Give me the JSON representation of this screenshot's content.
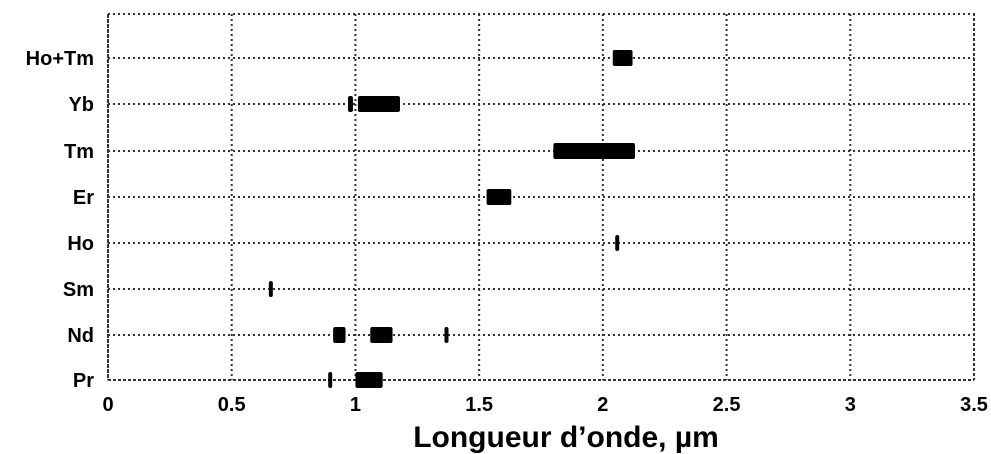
{
  "chart_data": {
    "type": "bar",
    "orientation": "horizontal-range",
    "xlabel": "Longueur d’onde, µm",
    "ylabel": "",
    "title": "",
    "xlim": [
      0,
      3.5
    ],
    "xticks": [
      "0",
      "0.5",
      "1",
      "1.5",
      "2",
      "2.5",
      "3",
      "3.5"
    ],
    "grid": true,
    "categories": [
      "Ho+Tm",
      "Yb",
      "Tm",
      "Er",
      "Ho",
      "Sm",
      "Nd",
      "Pr"
    ],
    "ranges": [
      {
        "category": "Ho+Tm",
        "intervals": [
          [
            2.04,
            2.12
          ]
        ]
      },
      {
        "category": "Yb",
        "intervals": [
          [
            0.97,
            0.99
          ],
          [
            1.01,
            1.18
          ]
        ]
      },
      {
        "category": "Tm",
        "intervals": [
          [
            1.8,
            2.13
          ]
        ]
      },
      {
        "category": "Er",
        "intervals": [
          [
            1.53,
            1.63
          ]
        ]
      },
      {
        "category": "Ho",
        "intervals": [
          [
            2.05,
            2.06
          ]
        ]
      },
      {
        "category": "Sm",
        "intervals": [
          [
            0.65,
            0.66
          ]
        ]
      },
      {
        "category": "Nd",
        "intervals": [
          [
            0.91,
            0.96
          ],
          [
            1.06,
            1.15
          ],
          [
            1.36,
            1.37
          ]
        ]
      },
      {
        "category": "Pr",
        "intervals": [
          [
            0.89,
            0.9
          ],
          [
            1.0,
            1.11
          ]
        ]
      }
    ],
    "bar_color": "#000000"
  }
}
